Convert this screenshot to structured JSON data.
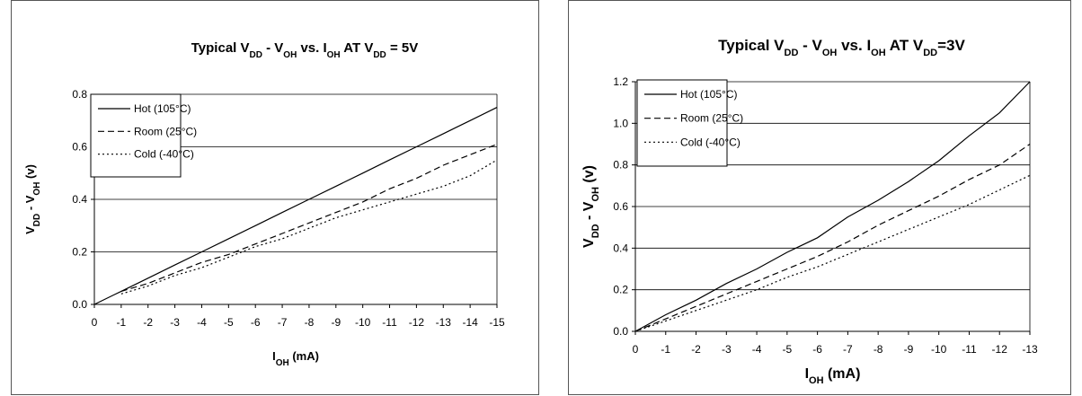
{
  "chart_data": [
    {
      "type": "line",
      "title": {
        "parts": [
          {
            "t": "Typical V"
          },
          {
            "t": "DD",
            "sub": true
          },
          {
            "t": " - V"
          },
          {
            "t": "OH",
            "sub": true
          },
          {
            "t": " vs. I"
          },
          {
            "t": "OH",
            "sub": true
          },
          {
            "t": " AT V"
          },
          {
            "t": "DD",
            "sub": true
          },
          {
            "t": " = 5V"
          }
        ]
      },
      "xlabel": {
        "parts": [
          {
            "t": "I"
          },
          {
            "t": "OH",
            "sub": true
          },
          {
            "t": " (mA)"
          }
        ]
      },
      "ylabel": {
        "parts": [
          {
            "t": "V"
          },
          {
            "t": "DD",
            "sub": true
          },
          {
            "t": " - V"
          },
          {
            "t": "OH",
            "sub": true
          },
          {
            "t": " (v)"
          }
        ]
      },
      "x": [
        0,
        -1,
        -2,
        -3,
        -4,
        -5,
        -6,
        -7,
        -8,
        -9,
        -10,
        -11,
        -12,
        -13,
        -14,
        -15
      ],
      "x_tick_labels": [
        "0",
        "-1",
        "-2",
        "-3",
        "-4",
        "-5",
        "-6",
        "-7",
        "-8",
        "-9",
        "-10",
        "-11",
        "-12",
        "-13",
        "-14",
        "-15"
      ],
      "ylim": [
        0,
        0.8
      ],
      "y_ticks": [
        0,
        0.2,
        0.4,
        0.6,
        0.8
      ],
      "y_tick_labels": [
        "0.0",
        "0.2",
        "0.4",
        "0.6",
        "0.8"
      ],
      "grid": true,
      "legend_position": "top-left",
      "series": [
        {
          "name": "Hot (105°C)",
          "style": "solid",
          "x": [
            0,
            -1,
            -2,
            -3,
            -4,
            -5,
            -6,
            -7,
            -8,
            -9,
            -10,
            -11,
            -12,
            -13,
            -14,
            -15
          ],
          "values": [
            0,
            0.05,
            0.1,
            0.15,
            0.2,
            0.25,
            0.3,
            0.35,
            0.4,
            0.45,
            0.5,
            0.55,
            0.6,
            0.65,
            0.7,
            0.75
          ]
        },
        {
          "name": "Room (25°C)",
          "style": "dashed",
          "x": [
            -1,
            -2,
            -3,
            -4,
            -5,
            -6,
            -7,
            -8,
            -9,
            -10,
            -11,
            -12,
            -13,
            -14,
            -15
          ],
          "values": [
            0.05,
            0.08,
            0.12,
            0.16,
            0.19,
            0.23,
            0.27,
            0.31,
            0.35,
            0.39,
            0.44,
            0.48,
            0.53,
            0.57,
            0.61
          ]
        },
        {
          "name": "Cold (-40°C)",
          "style": "dotted",
          "x": [
            -1,
            -2,
            -3,
            -4,
            -5,
            -6,
            -7,
            -8,
            -9,
            -10,
            -11,
            -12,
            -13,
            -14,
            -15
          ],
          "values": [
            0.04,
            0.07,
            0.11,
            0.14,
            0.18,
            0.22,
            0.25,
            0.29,
            0.33,
            0.36,
            0.39,
            0.42,
            0.45,
            0.49,
            0.55
          ]
        }
      ]
    },
    {
      "type": "line",
      "title": {
        "parts": [
          {
            "t": "Typical V"
          },
          {
            "t": "DD",
            "sub": true
          },
          {
            "t": " - V"
          },
          {
            "t": "OH",
            "sub": true
          },
          {
            "t": " vs. I"
          },
          {
            "t": "OH",
            "sub": true
          },
          {
            "t": " AT V"
          },
          {
            "t": "DD",
            "sub": true
          },
          {
            "t": "=3V"
          }
        ]
      },
      "xlabel": {
        "parts": [
          {
            "t": "I"
          },
          {
            "t": "OH",
            "sub": true
          },
          {
            "t": " (mA)"
          }
        ]
      },
      "ylabel": {
        "parts": [
          {
            "t": "V"
          },
          {
            "t": "DD",
            "sub": true
          },
          {
            "t": " - V"
          },
          {
            "t": "OH",
            "sub": true
          },
          {
            "t": " (v)"
          }
        ]
      },
      "x": [
        0,
        -1,
        -2,
        -3,
        -4,
        -5,
        -6,
        -7,
        -8,
        -9,
        -10,
        -11,
        -12,
        -13
      ],
      "x_tick_labels": [
        "0",
        "-1",
        "-2",
        "-3",
        "-4",
        "-5",
        "-6",
        "-7",
        "-8",
        "-9",
        "-10",
        "-11",
        "-12",
        "-13"
      ],
      "ylim": [
        0,
        1.2
      ],
      "y_ticks": [
        0,
        0.2,
        0.4,
        0.6,
        0.8,
        1.0,
        1.2
      ],
      "y_tick_labels": [
        "0.0",
        "0.2",
        "0.4",
        "0.6",
        "0.8",
        "1.0",
        "1.2"
      ],
      "grid": true,
      "legend_position": "top-left",
      "series": [
        {
          "name": "Hot (105°C)",
          "style": "solid",
          "x": [
            0,
            -1,
            -2,
            -3,
            -4,
            -5,
            -6,
            -7,
            -8,
            -9,
            -10,
            -11,
            -12,
            -13
          ],
          "values": [
            0,
            0.08,
            0.15,
            0.23,
            0.3,
            0.38,
            0.45,
            0.55,
            0.63,
            0.72,
            0.82,
            0.94,
            1.05,
            1.2
          ]
        },
        {
          "name": "Room (25°C)",
          "style": "dashed",
          "x": [
            0,
            -1,
            -2,
            -3,
            -4,
            -5,
            -6,
            -7,
            -8,
            -9,
            -10,
            -11,
            -12,
            -13
          ],
          "values": [
            0,
            0.06,
            0.12,
            0.18,
            0.24,
            0.3,
            0.36,
            0.43,
            0.51,
            0.58,
            0.65,
            0.73,
            0.8,
            0.9
          ]
        },
        {
          "name": "Cold (-40°C)",
          "style": "dotted",
          "x": [
            0,
            -1,
            -2,
            -3,
            -4,
            -5,
            -6,
            -7,
            -8,
            -9,
            -10,
            -11,
            -12,
            -13
          ],
          "values": [
            0,
            0.05,
            0.1,
            0.15,
            0.2,
            0.26,
            0.31,
            0.37,
            0.43,
            0.49,
            0.55,
            0.61,
            0.68,
            0.75
          ]
        }
      ]
    }
  ]
}
